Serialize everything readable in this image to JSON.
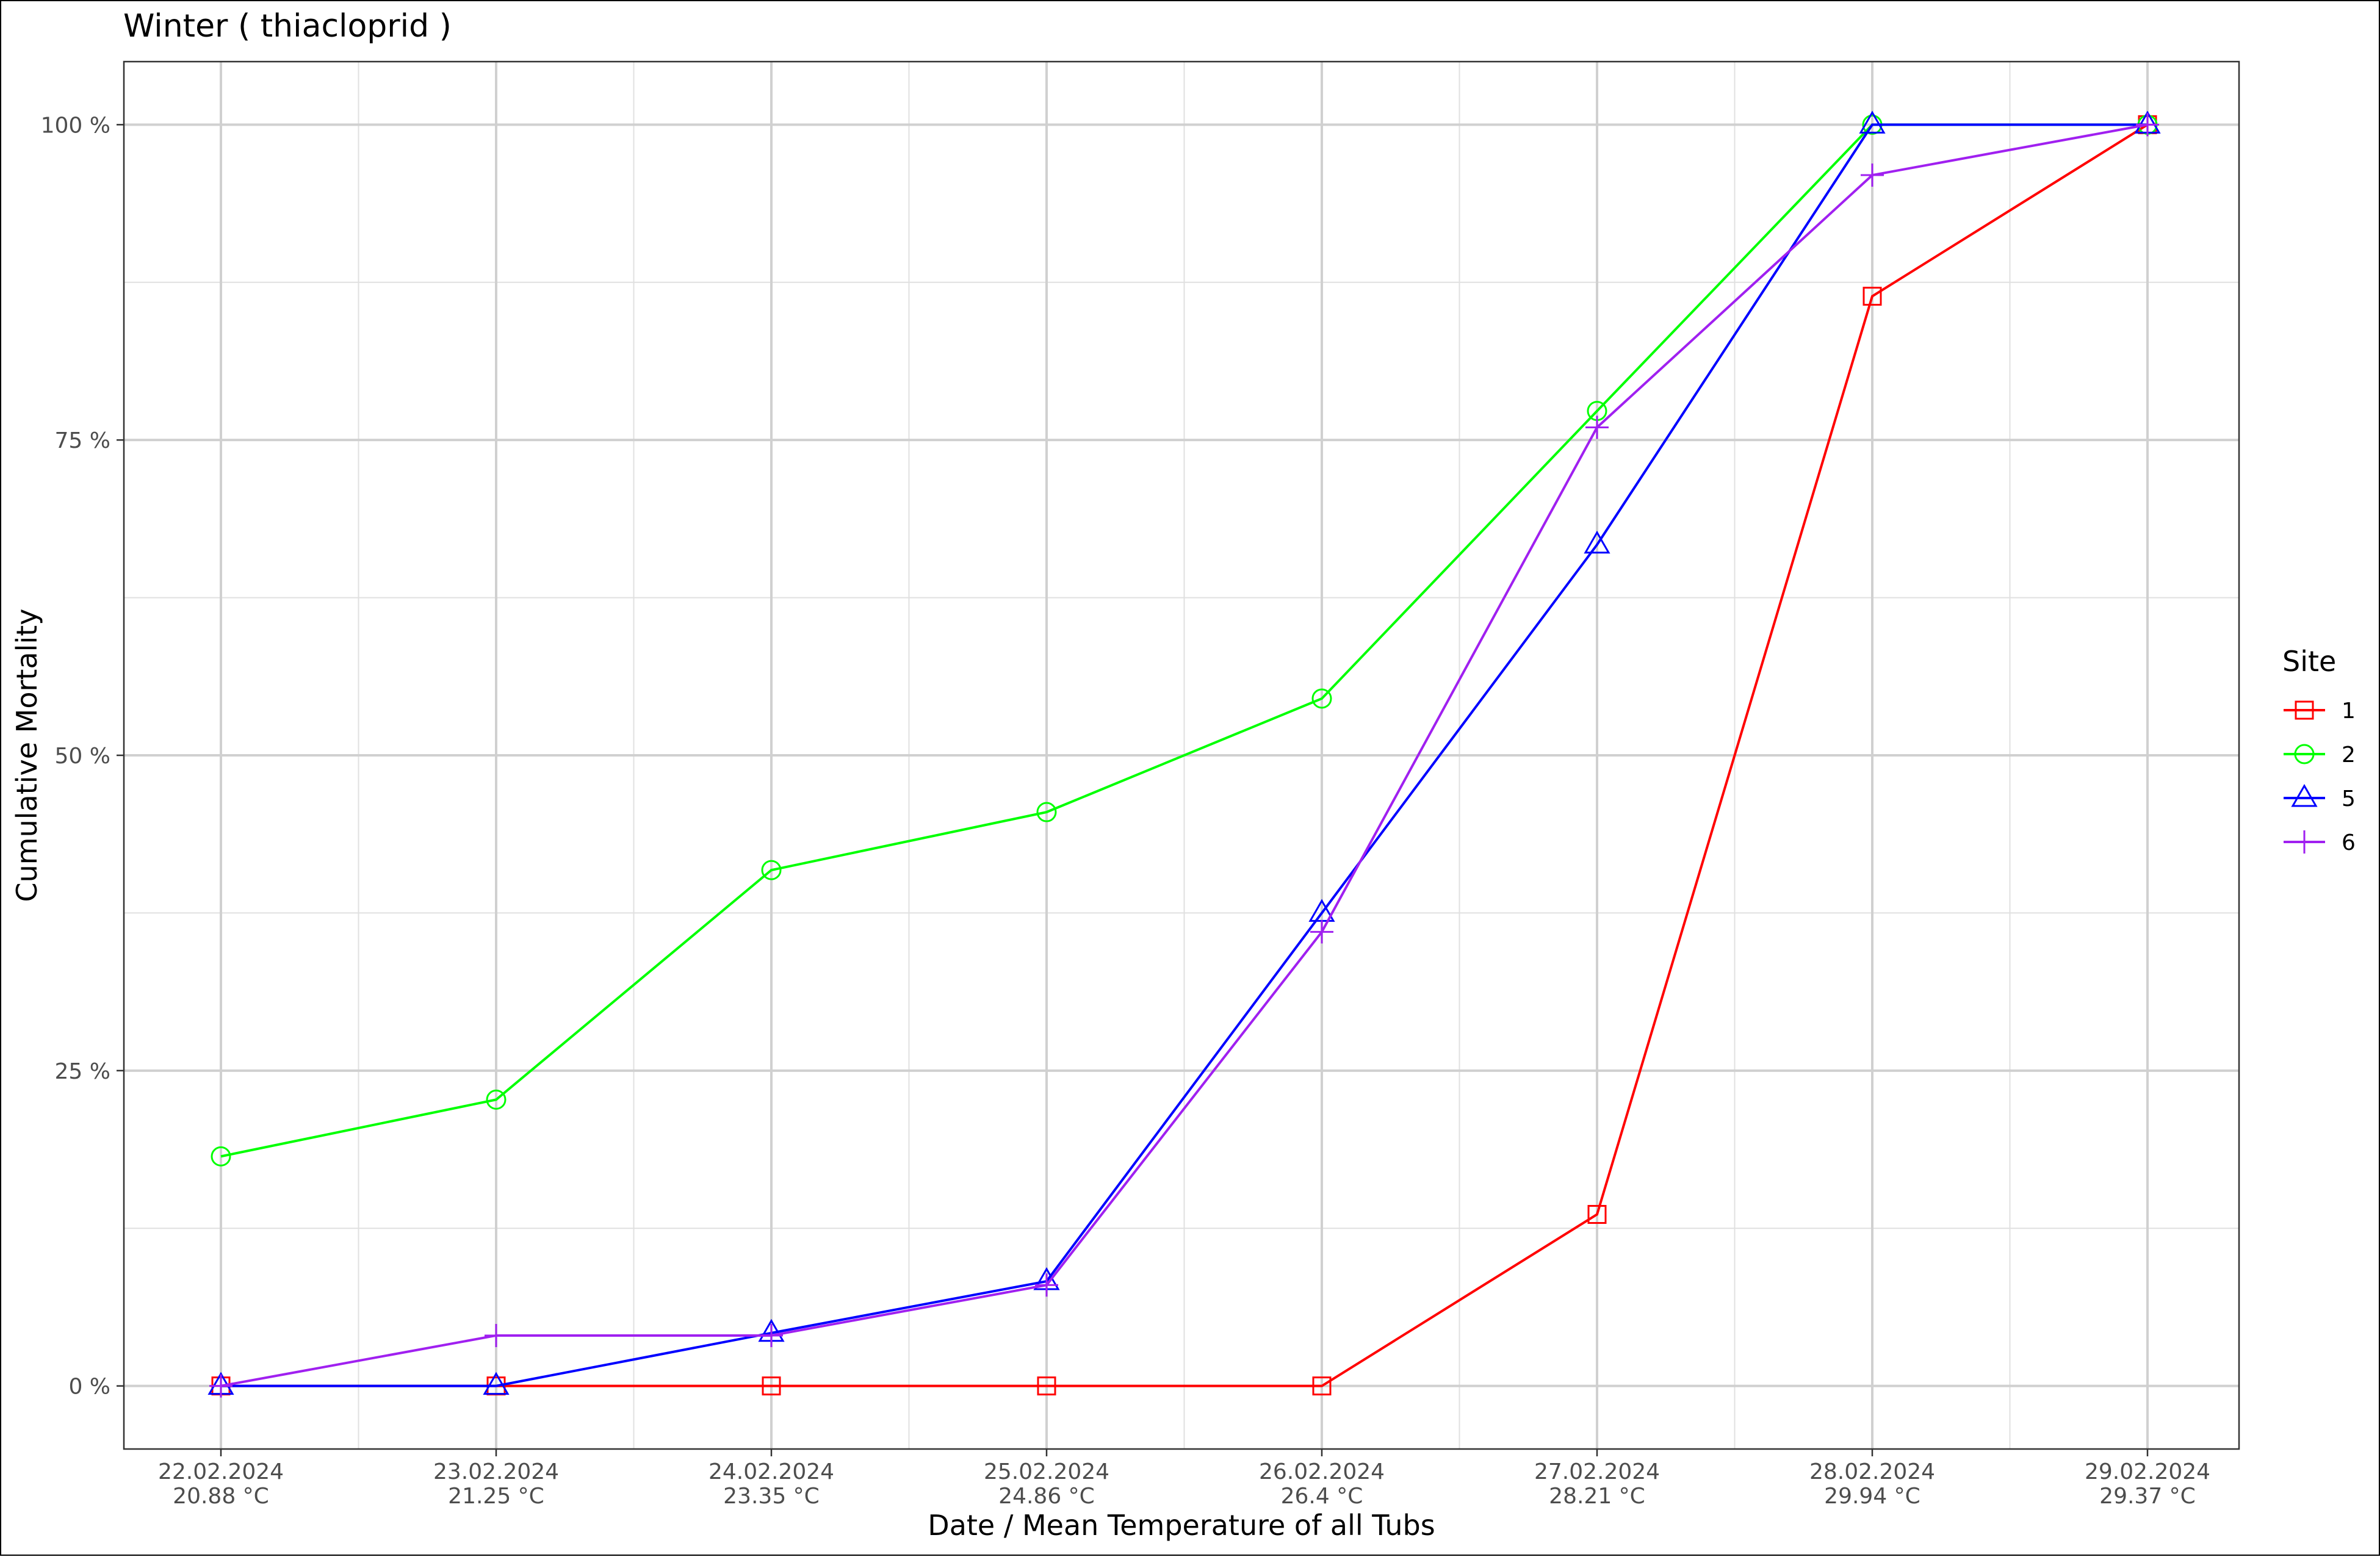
{
  "chart_data": {
    "type": "line",
    "title": "Winter ( thiacloprid )",
    "xlabel": "Date / Mean Temperature of all Tubs",
    "ylabel": "Cumulative Mortality",
    "categories": [
      {
        "date": "22.02.2024",
        "temp": "20.88 °C"
      },
      {
        "date": "23.02.2024",
        "temp": "21.25 °C"
      },
      {
        "date": "24.02.2024",
        "temp": "23.35 °C"
      },
      {
        "date": "25.02.2024",
        "temp": "24.86 °C"
      },
      {
        "date": "26.02.2024",
        "temp": "26.4 °C"
      },
      {
        "date": "27.02.2024",
        "temp": "28.21 °C"
      },
      {
        "date": "28.02.2024",
        "temp": "29.94 °C"
      },
      {
        "date": "29.02.2024",
        "temp": "29.37 °C"
      }
    ],
    "yticks": [
      {
        "value": 0,
        "label": "0 %"
      },
      {
        "value": 25,
        "label": "25 %"
      },
      {
        "value": 50,
        "label": "50 %"
      },
      {
        "value": 75,
        "label": "75 %"
      },
      {
        "value": 100,
        "label": "100 %"
      }
    ],
    "ylim": [
      -5,
      105
    ],
    "grid": true,
    "legend": {
      "title": "Site",
      "placement": "right"
    },
    "series": [
      {
        "name": "1",
        "color": "#ff0000",
        "marker": "square",
        "values": [
          0,
          0,
          0,
          0,
          0,
          13.6,
          86.4,
          100
        ]
      },
      {
        "name": "2",
        "color": "#00ff00",
        "marker": "circle",
        "values": [
          18.2,
          22.7,
          40.9,
          45.5,
          54.5,
          77.3,
          100,
          100
        ]
      },
      {
        "name": "5",
        "color": "#0000ff",
        "marker": "triangle",
        "values": [
          0,
          0,
          4.2,
          8.3,
          37.5,
          66.7,
          100,
          100
        ]
      },
      {
        "name": "6",
        "color": "#a020f0",
        "marker": "plus",
        "values": [
          0,
          4,
          4,
          8,
          36,
          76,
          96,
          100
        ]
      }
    ]
  }
}
